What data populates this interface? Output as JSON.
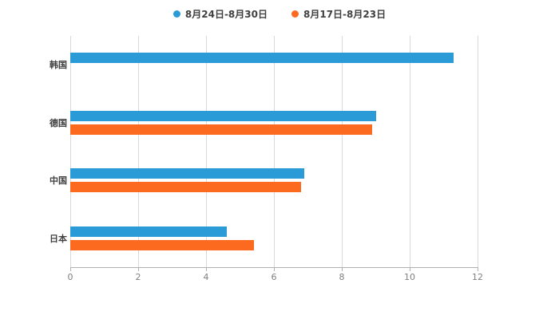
{
  "chart_data": {
    "type": "bar",
    "orientation": "horizontal",
    "title": "",
    "categories": [
      "韩国",
      "德国",
      "中国",
      "日本"
    ],
    "series": [
      {
        "name": "8月24日-8月30日",
        "color": "#2b9bd7",
        "values": [
          11.3,
          9.0,
          6.9,
          4.6
        ]
      },
      {
        "name": "8月17日-8月23日",
        "color": "#fb6a1e",
        "values": [
          null,
          8.9,
          6.8,
          5.4
        ]
      }
    ],
    "xlim": [
      0,
      12
    ],
    "xticks": [
      0,
      2,
      4,
      6,
      8,
      10,
      12
    ],
    "grid": true,
    "legend_position": "top-center"
  },
  "colors": {
    "gridline": "#d9d9d9",
    "axis": "#b0b0b0",
    "tick_text": "#808080",
    "category_text": "#404040",
    "background": "#ffffff"
  }
}
